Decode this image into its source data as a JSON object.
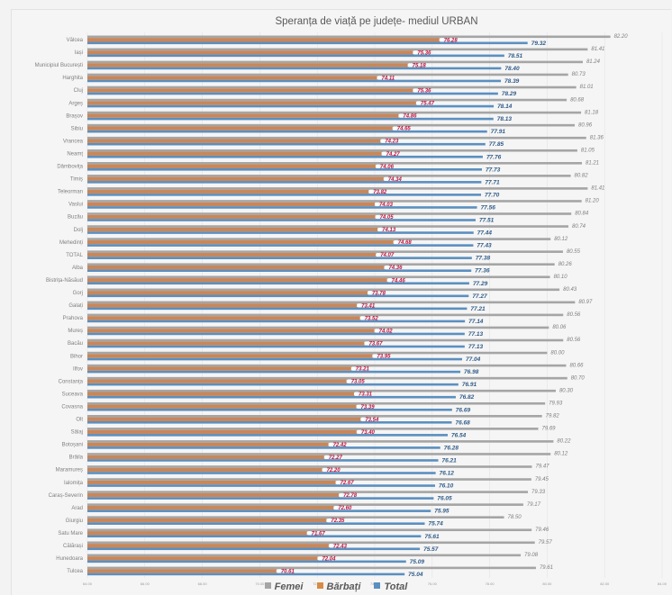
{
  "chart_data": {
    "type": "bar",
    "orientation": "horizontal",
    "title": "Speranța de viață pe județe- mediul URBAN",
    "xlabel": "",
    "ylabel": "",
    "xlim": [
      64,
      84
    ],
    "x_ticks": [
      "64.00",
      "66.00",
      "68.00",
      "70.00",
      "72.00",
      "74.00",
      "76.00",
      "78.00",
      "80.00",
      "82.00",
      "84.00"
    ],
    "grid": true,
    "legend_position": "bottom",
    "categories": [
      "Vâlcea",
      "Iași",
      "Municipiul București",
      "Harghita",
      "Cluj",
      "Argeș",
      "Brașov",
      "Sibiu",
      "Vrancea",
      "Neamț",
      "Dâmbovița",
      "Timiș",
      "Teleorman",
      "Vaslui",
      "Buzău",
      "Dolj",
      "Mehedinți",
      "TOTAL",
      "Alba",
      "Bistrița-Năsăud",
      "Gorj",
      "Galați",
      "Prahova",
      "Mureș",
      "Bacău",
      "Bihor",
      "Ilfov",
      "Constanța",
      "Suceava",
      "Covasna",
      "Olt",
      "Sălaj",
      "Botoșani",
      "Brăila",
      "Maramureș",
      "Ialomița",
      "Caraș-Severin",
      "Arad",
      "Giurgiu",
      "Satu Mare",
      "Călărași",
      "Hunedoara",
      "Tulcea"
    ],
    "series": [
      {
        "name": "Femei",
        "color": "#a5a5a5",
        "values": [
          82.2,
          81.41,
          81.24,
          80.73,
          81.01,
          80.68,
          81.18,
          80.96,
          81.36,
          81.05,
          81.21,
          80.82,
          81.41,
          81.2,
          80.84,
          80.74,
          80.12,
          80.55,
          80.26,
          80.1,
          80.43,
          80.97,
          80.56,
          80.06,
          80.56,
          80.0,
          80.66,
          80.7,
          80.3,
          79.93,
          79.82,
          79.69,
          80.22,
          80.12,
          79.47,
          79.45,
          79.33,
          79.17,
          78.5,
          79.46,
          79.57,
          79.08,
          79.61
        ]
      },
      {
        "name": "Bărbați",
        "color": "#c8875a",
        "values": [
          76.28,
          75.36,
          75.18,
          74.11,
          75.36,
          75.47,
          74.86,
          74.65,
          74.23,
          74.27,
          74.06,
          74.34,
          73.82,
          74.03,
          74.05,
          74.13,
          74.68,
          74.07,
          74.36,
          74.46,
          73.78,
          73.41,
          73.52,
          74.02,
          73.67,
          73.95,
          73.21,
          73.05,
          73.31,
          73.39,
          73.54,
          73.4,
          72.42,
          72.27,
          72.2,
          72.67,
          72.78,
          72.6,
          72.35,
          71.67,
          72.43,
          72.04,
          70.61
        ]
      },
      {
        "name": "Total",
        "color": "#5b8fc0",
        "values": [
          79.32,
          78.51,
          78.4,
          78.39,
          78.29,
          78.14,
          78.13,
          77.91,
          77.85,
          77.76,
          77.73,
          77.71,
          77.7,
          77.56,
          77.51,
          77.44,
          77.43,
          77.38,
          77.36,
          77.29,
          77.27,
          77.21,
          77.14,
          77.13,
          77.13,
          77.04,
          76.98,
          76.91,
          76.82,
          76.69,
          76.68,
          76.54,
          76.28,
          76.21,
          76.12,
          76.1,
          76.05,
          75.95,
          75.74,
          75.61,
          75.57,
          75.09,
          75.04
        ]
      }
    ]
  }
}
